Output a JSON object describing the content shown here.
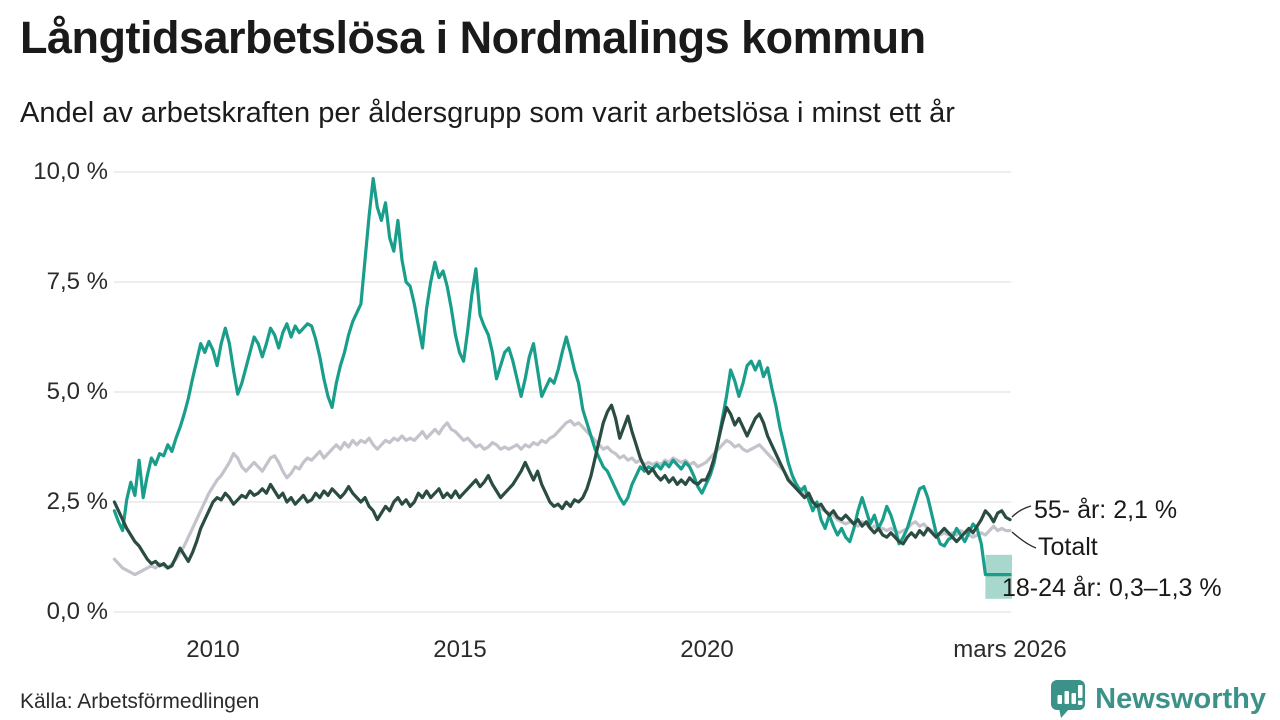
{
  "header": {
    "title": "Långtidsarbetslösa i Nordmalings kommun",
    "subtitle": "Andel av arbetskraften per åldersgrupp som varit arbetslösa i minst ett år"
  },
  "footer": {
    "source": "Källa: Arbetsförmedlingen",
    "brand": "Newsworthy",
    "brand_color": "#3b9289",
    "brand_icon": "bar-chart-speech-bubble-icon"
  },
  "chart_data": {
    "type": "line",
    "title": "Långtidsarbetslösa i Nordmalings kommun",
    "subtitle": "Andel av arbetskraften per åldersgrupp som varit arbetslösa i minst ett år",
    "unit": "%",
    "grid": "horizontal",
    "ylim": [
      0,
      10
    ],
    "x_start_year": 2008,
    "points_per_year": 12,
    "x_end_label": "mars 2026",
    "grid_color": "#e3e3e3",
    "y_ticks": [
      {
        "label": "10,0 %",
        "value": 10.0
      },
      {
        "label": "7,5 %",
        "value": 7.5
      },
      {
        "label": "5,0 %",
        "value": 5.0
      },
      {
        "label": "2,5 %",
        "value": 2.5
      },
      {
        "label": "0,0 %",
        "value": 0.0
      }
    ],
    "x_ticks": [
      {
        "label": "2010",
        "t": 2010.0
      },
      {
        "label": "2015",
        "t": 2015.0
      },
      {
        "label": "2020",
        "t": 2020.0
      },
      {
        "label": "mars 2026",
        "t": 2026.17
      }
    ],
    "series": [
      {
        "name": "Totalt",
        "color": "#c4c3cb",
        "values": [
          1.2,
          1.1,
          1.0,
          0.95,
          0.9,
          0.85,
          0.9,
          0.95,
          1.0,
          1.05,
          1.0,
          1.1,
          1.05,
          1.0,
          1.1,
          1.2,
          1.35,
          1.5,
          1.7,
          1.9,
          2.1,
          2.3,
          2.5,
          2.7,
          2.85,
          3.0,
          3.1,
          3.25,
          3.4,
          3.6,
          3.5,
          3.3,
          3.2,
          3.3,
          3.4,
          3.3,
          3.2,
          3.35,
          3.5,
          3.55,
          3.4,
          3.2,
          3.05,
          3.15,
          3.3,
          3.25,
          3.4,
          3.5,
          3.45,
          3.55,
          3.65,
          3.5,
          3.6,
          3.7,
          3.8,
          3.7,
          3.85,
          3.75,
          3.9,
          3.8,
          3.9,
          3.85,
          3.95,
          3.8,
          3.7,
          3.8,
          3.9,
          3.85,
          3.95,
          3.9,
          4.0,
          3.9,
          3.95,
          3.9,
          4.0,
          4.1,
          3.95,
          4.05,
          4.15,
          4.05,
          4.2,
          4.3,
          4.15,
          4.1,
          4.0,
          3.9,
          3.95,
          3.85,
          3.75,
          3.8,
          3.7,
          3.75,
          3.85,
          3.8,
          3.7,
          3.75,
          3.7,
          3.75,
          3.8,
          3.7,
          3.8,
          3.75,
          3.85,
          3.8,
          3.9,
          3.85,
          3.95,
          4.0,
          4.1,
          4.2,
          4.3,
          4.35,
          4.25,
          4.3,
          4.2,
          4.1,
          4.0,
          3.9,
          3.8,
          3.7,
          3.75,
          3.65,
          3.6,
          3.5,
          3.55,
          3.45,
          3.5,
          3.4,
          3.45,
          3.35,
          3.4,
          3.35,
          3.4,
          3.35,
          3.45,
          3.4,
          3.5,
          3.45,
          3.4,
          3.45,
          3.35,
          3.4,
          3.3,
          3.35,
          3.4,
          3.5,
          3.6,
          3.7,
          3.8,
          3.9,
          3.85,
          3.75,
          3.8,
          3.7,
          3.65,
          3.7,
          3.75,
          3.8,
          3.7,
          3.6,
          3.5,
          3.4,
          3.3,
          3.2,
          3.05,
          2.95,
          2.85,
          2.8,
          2.7,
          2.6,
          2.5,
          2.45,
          2.35,
          2.3,
          2.25,
          2.2,
          2.1,
          2.05,
          2.0,
          2.05,
          2.0,
          1.95,
          2.05,
          2.0,
          1.9,
          1.95,
          1.85,
          1.9,
          1.85,
          1.9,
          1.85,
          1.8,
          1.85,
          1.9,
          2.0,
          2.05,
          1.95,
          2.0,
          1.9,
          1.85,
          1.8,
          1.75,
          1.8,
          1.75,
          1.8,
          1.75,
          1.85,
          1.8,
          1.75,
          1.7,
          1.75,
          1.8,
          1.75,
          1.85,
          1.95,
          1.85,
          1.9,
          1.85,
          1.85
        ]
      },
      {
        "name": "18-24 år",
        "color": "#1a9e8c",
        "values": [
          2.3,
          2.05,
          1.85,
          2.55,
          2.95,
          2.65,
          3.45,
          2.6,
          3.1,
          3.5,
          3.35,
          3.6,
          3.55,
          3.8,
          3.65,
          3.95,
          4.2,
          4.5,
          4.85,
          5.3,
          5.7,
          6.1,
          5.9,
          6.15,
          5.95,
          5.6,
          6.1,
          6.45,
          6.1,
          5.5,
          4.95,
          5.2,
          5.55,
          5.9,
          6.25,
          6.1,
          5.8,
          6.1,
          6.45,
          6.3,
          6.0,
          6.35,
          6.55,
          6.25,
          6.5,
          6.35,
          6.45,
          6.55,
          6.5,
          6.2,
          5.8,
          5.3,
          4.9,
          4.65,
          5.2,
          5.6,
          5.9,
          6.3,
          6.6,
          6.8,
          7.0,
          8.0,
          9.0,
          9.85,
          9.2,
          8.9,
          9.3,
          8.5,
          8.2,
          8.9,
          8.0,
          7.5,
          7.4,
          7.0,
          6.5,
          6.0,
          6.9,
          7.5,
          7.95,
          7.6,
          7.75,
          7.4,
          6.9,
          6.3,
          5.9,
          5.7,
          6.4,
          7.2,
          7.8,
          6.75,
          6.5,
          6.3,
          5.9,
          5.3,
          5.6,
          5.9,
          6.0,
          5.7,
          5.3,
          4.9,
          5.3,
          5.8,
          6.1,
          5.5,
          4.9,
          5.1,
          5.3,
          5.2,
          5.5,
          5.9,
          6.25,
          5.9,
          5.5,
          5.2,
          4.6,
          4.3,
          4.0,
          3.7,
          3.5,
          3.3,
          3.2,
          3.0,
          2.8,
          2.6,
          2.45,
          2.6,
          2.9,
          3.1,
          3.3,
          3.2,
          3.3,
          3.25,
          3.35,
          3.25,
          3.4,
          3.3,
          3.45,
          3.35,
          3.25,
          3.4,
          3.3,
          3.1,
          2.85,
          2.7,
          2.9,
          3.1,
          3.4,
          3.9,
          4.4,
          4.9,
          5.5,
          5.25,
          4.9,
          5.2,
          5.6,
          5.7,
          5.5,
          5.7,
          5.35,
          5.55,
          5.1,
          4.7,
          4.2,
          3.8,
          3.4,
          3.1,
          2.9,
          2.75,
          2.85,
          2.55,
          2.3,
          2.5,
          2.1,
          1.9,
          2.2,
          1.95,
          1.75,
          1.9,
          1.7,
          1.6,
          1.9,
          2.3,
          2.6,
          2.3,
          2.0,
          2.2,
          1.9,
          2.1,
          2.4,
          2.2,
          1.9,
          1.55,
          1.7,
          1.9,
          2.2,
          2.5,
          2.8,
          2.85,
          2.6,
          2.2,
          1.8,
          1.55,
          1.5,
          1.65,
          1.7,
          1.9,
          1.75,
          1.6,
          1.8,
          2.0,
          1.9,
          1.55,
          0.85,
          0.85,
          0.85,
          0.85,
          0.85,
          0.85,
          0.85
        ]
      },
      {
        "name": "55- år",
        "color": "#2b4c42",
        "values": [
          2.5,
          2.3,
          2.1,
          1.9,
          1.75,
          1.6,
          1.5,
          1.35,
          1.2,
          1.1,
          1.15,
          1.05,
          1.1,
          1.0,
          1.05,
          1.25,
          1.45,
          1.3,
          1.15,
          1.35,
          1.6,
          1.9,
          2.1,
          2.3,
          2.5,
          2.6,
          2.55,
          2.7,
          2.6,
          2.45,
          2.55,
          2.65,
          2.6,
          2.75,
          2.65,
          2.7,
          2.8,
          2.7,
          2.9,
          2.75,
          2.6,
          2.7,
          2.5,
          2.6,
          2.45,
          2.55,
          2.65,
          2.5,
          2.55,
          2.7,
          2.6,
          2.75,
          2.65,
          2.8,
          2.7,
          2.6,
          2.7,
          2.85,
          2.7,
          2.6,
          2.5,
          2.6,
          2.4,
          2.3,
          2.1,
          2.25,
          2.4,
          2.3,
          2.5,
          2.6,
          2.45,
          2.55,
          2.4,
          2.5,
          2.7,
          2.6,
          2.75,
          2.6,
          2.7,
          2.8,
          2.6,
          2.7,
          2.6,
          2.75,
          2.6,
          2.7,
          2.8,
          2.9,
          3.0,
          2.85,
          2.95,
          3.1,
          2.9,
          2.75,
          2.6,
          2.7,
          2.8,
          2.9,
          3.05,
          3.2,
          3.4,
          3.2,
          3.0,
          3.2,
          2.9,
          2.7,
          2.5,
          2.4,
          2.45,
          2.35,
          2.5,
          2.4,
          2.55,
          2.5,
          2.6,
          2.8,
          3.1,
          3.5,
          3.9,
          4.3,
          4.55,
          4.7,
          4.4,
          3.95,
          4.2,
          4.45,
          4.1,
          3.8,
          3.5,
          3.3,
          3.15,
          3.25,
          3.1,
          3.0,
          3.1,
          2.95,
          3.05,
          2.9,
          3.0,
          2.9,
          3.05,
          2.95,
          2.9,
          3.0,
          3.0,
          3.2,
          3.5,
          3.9,
          4.3,
          4.65,
          4.5,
          4.25,
          4.4,
          4.2,
          4.0,
          4.2,
          4.4,
          4.5,
          4.3,
          4.0,
          3.8,
          3.6,
          3.4,
          3.2,
          3.0,
          2.9,
          2.8,
          2.7,
          2.6,
          2.7,
          2.5,
          2.4,
          2.45,
          2.3,
          2.2,
          2.3,
          2.15,
          2.1,
          2.2,
          2.1,
          2.0,
          2.1,
          1.95,
          2.05,
          1.9,
          1.8,
          1.9,
          1.75,
          1.7,
          1.8,
          1.7,
          1.6,
          1.55,
          1.7,
          1.8,
          1.7,
          1.85,
          1.75,
          1.9,
          1.8,
          1.7,
          1.8,
          1.9,
          1.8,
          1.7,
          1.6,
          1.7,
          1.8,
          1.9,
          1.8,
          1.95,
          2.1,
          2.3,
          2.2,
          2.05,
          2.25,
          2.3,
          2.15,
          2.1
        ]
      }
    ],
    "uncertainty_band": {
      "series": "18-24 år",
      "from_t": 2025.667,
      "low": 0.3,
      "high": 1.3,
      "color": "#a7d7cd"
    },
    "annotations": [
      {
        "series": "55- år",
        "text": "55- år: 2,1 %"
      },
      {
        "series": "Totalt",
        "text": "Totalt"
      },
      {
        "series": "18-24 år",
        "text": "18-24 år: 0,3–1,3 %"
      }
    ],
    "legend_position": "right-annotations"
  }
}
